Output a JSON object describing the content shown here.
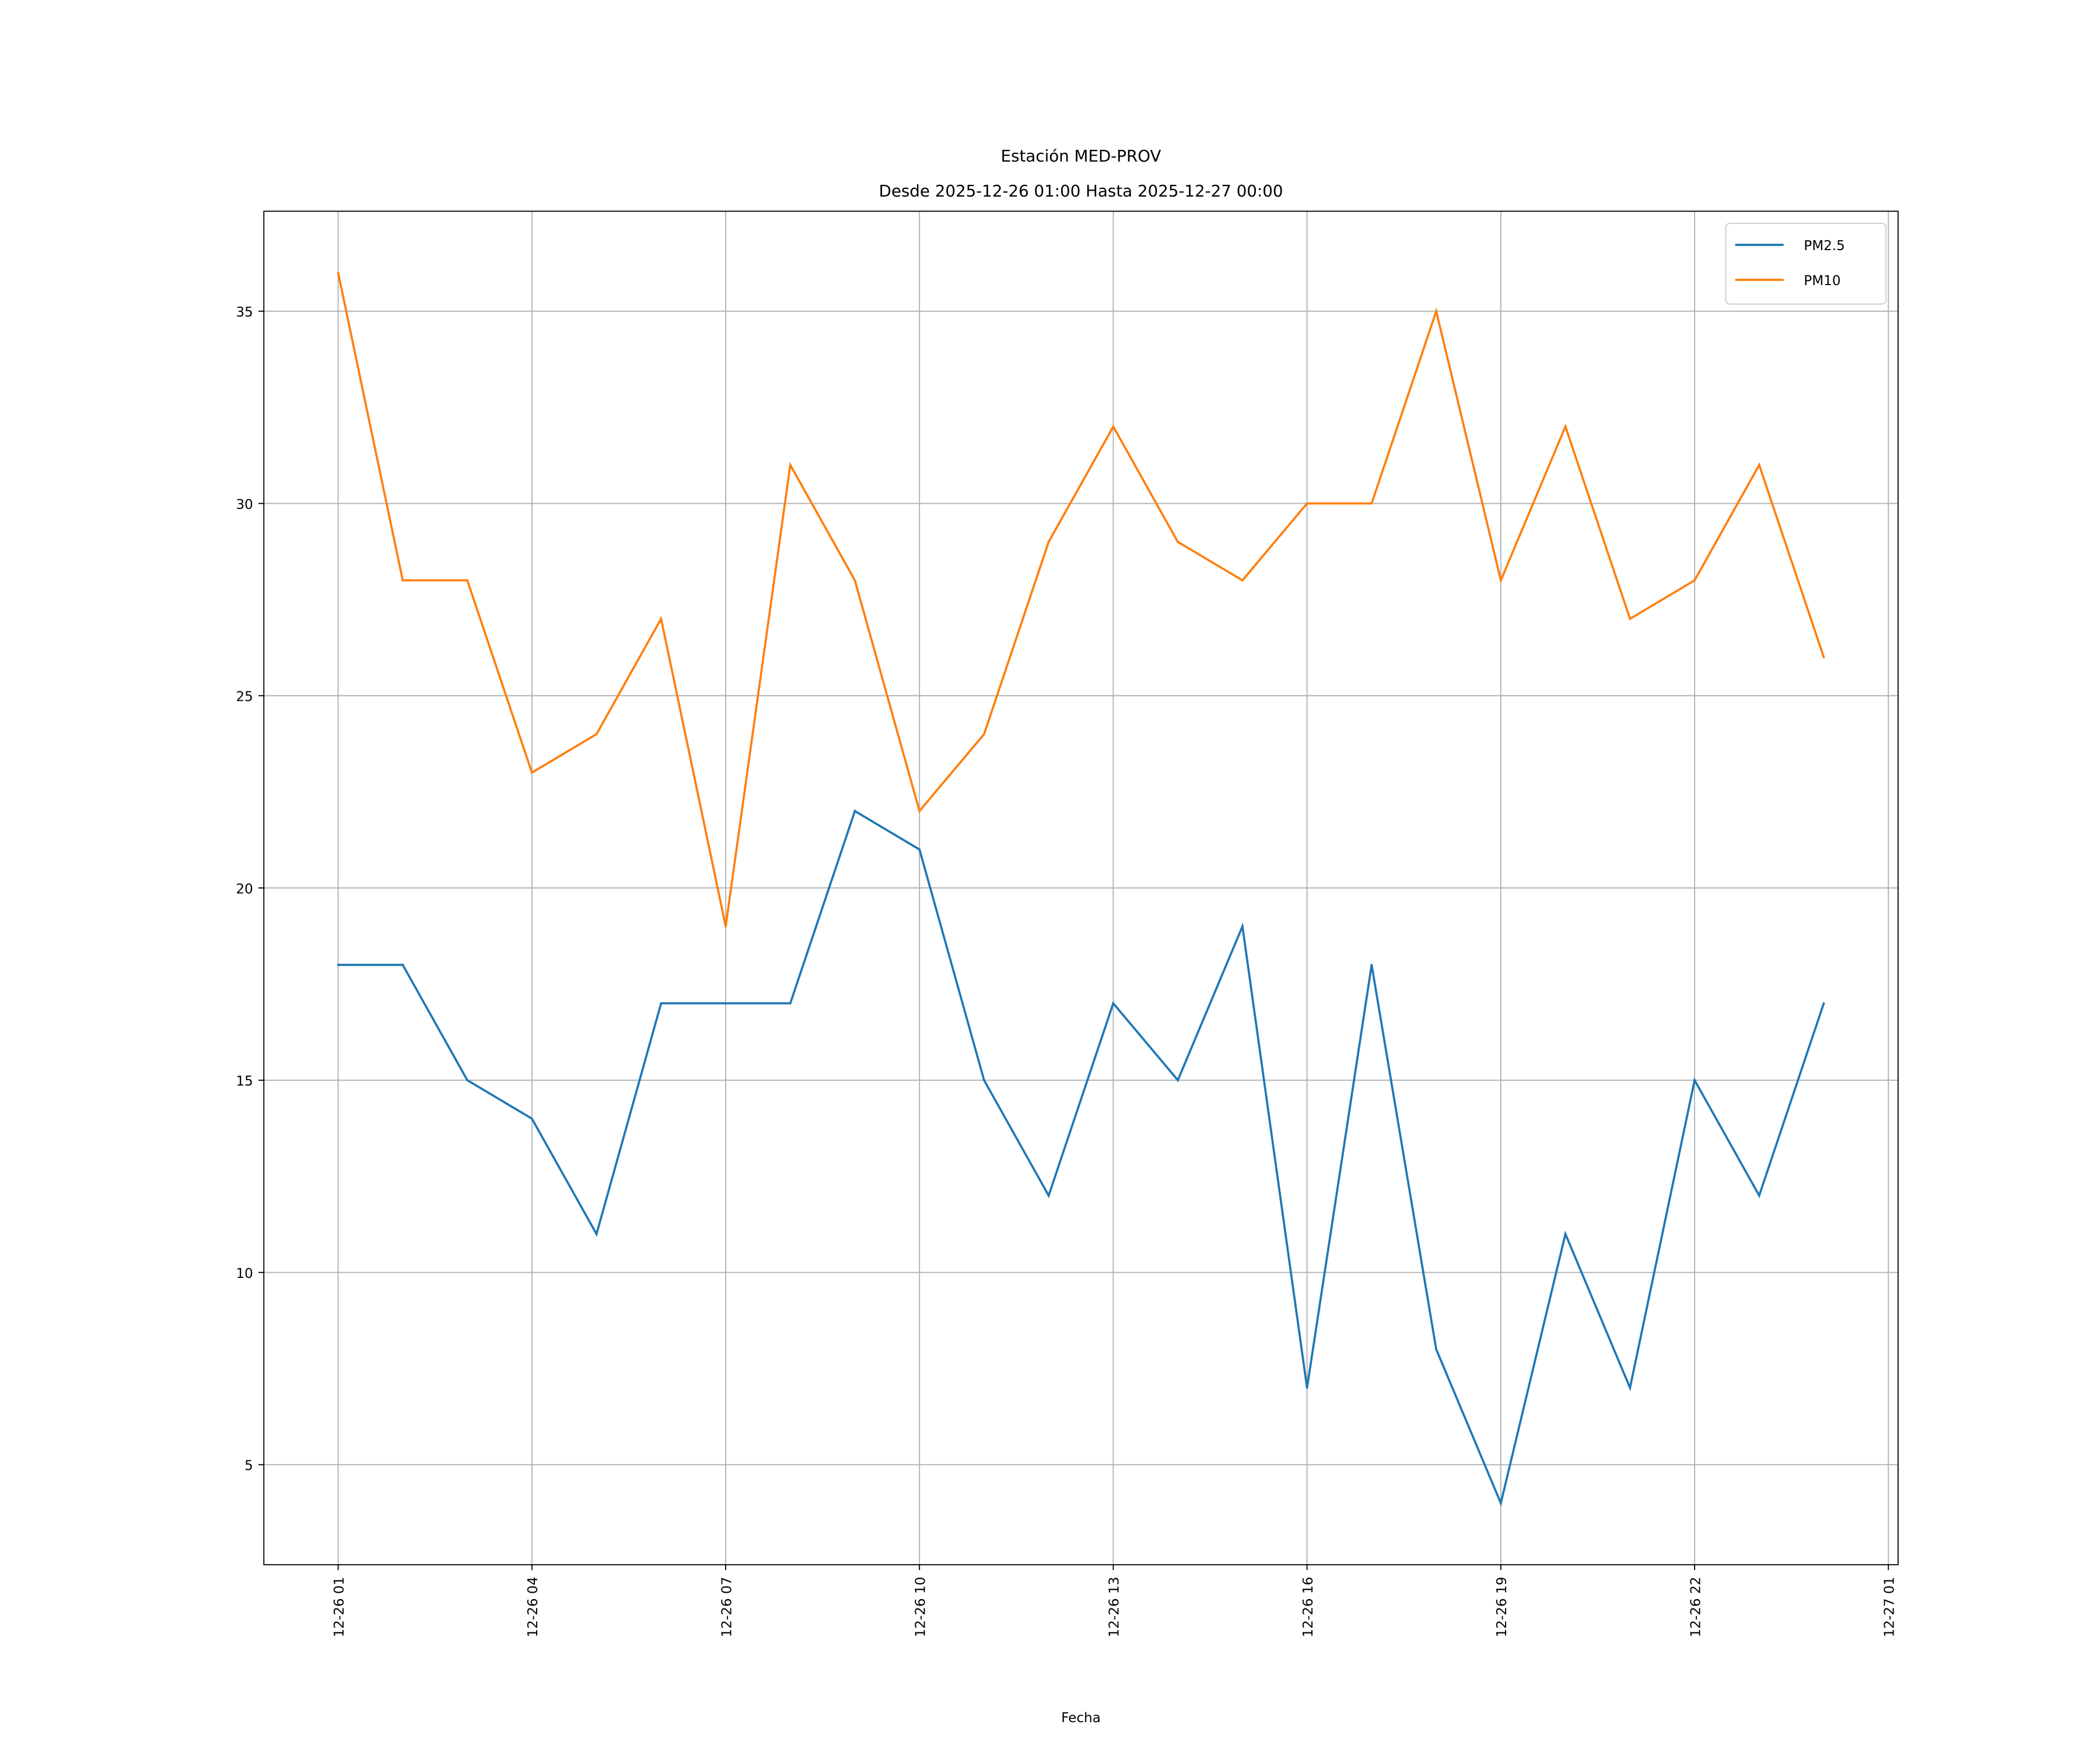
{
  "chart_data": {
    "type": "line",
    "title": [
      "Estación MED-PROV",
      "Desde 2025-12-26 01:00 Hasta 2025-12-27 00:00"
    ],
    "xlabel": "Fecha",
    "ylabel": "",
    "x": [
      "2025-12-26 01:00",
      "2025-12-26 02:00",
      "2025-12-26 03:00",
      "2025-12-26 04:00",
      "2025-12-26 05:00",
      "2025-12-26 06:00",
      "2025-12-26 07:00",
      "2025-12-26 08:00",
      "2025-12-26 09:00",
      "2025-12-26 10:00",
      "2025-12-26 11:00",
      "2025-12-26 12:00",
      "2025-12-26 13:00",
      "2025-12-26 14:00",
      "2025-12-26 15:00",
      "2025-12-26 16:00",
      "2025-12-26 17:00",
      "2025-12-26 18:00",
      "2025-12-26 19:00",
      "2025-12-26 20:00",
      "2025-12-26 21:00",
      "2025-12-26 22:00",
      "2025-12-26 23:00",
      "2025-12-27 00:00"
    ],
    "series": [
      {
        "name": "PM2.5",
        "color": "#1f77b4",
        "values": [
          18,
          18,
          15,
          14,
          11,
          17,
          17,
          17,
          22,
          21,
          15,
          12,
          17,
          15,
          19,
          7,
          18,
          8,
          4,
          11,
          7,
          15,
          12,
          17
        ]
      },
      {
        "name": "PM10",
        "color": "#ff7f0e",
        "values": [
          36,
          28,
          28,
          23,
          24,
          27,
          19,
          31,
          28,
          22,
          24,
          29,
          32,
          29,
          28,
          30,
          30,
          35,
          28,
          32,
          27,
          28,
          31,
          26
        ]
      }
    ],
    "xticks": {
      "hours_from_start": [
        0,
        3,
        6,
        9,
        12,
        15,
        18,
        21,
        24
      ],
      "labels": [
        "12-26 01",
        "12-26 04",
        "12-26 07",
        "12-26 10",
        "12-26 13",
        "12-26 16",
        "12-26 19",
        "12-26 22",
        "12-27 01"
      ]
    },
    "yticks": [
      5,
      10,
      15,
      20,
      25,
      30,
      35
    ],
    "xlim_hours": [
      -1.15,
      24.15
    ],
    "ylim": [
      2.4,
      37.6
    ],
    "grid": true,
    "legend_position": "top-right"
  }
}
